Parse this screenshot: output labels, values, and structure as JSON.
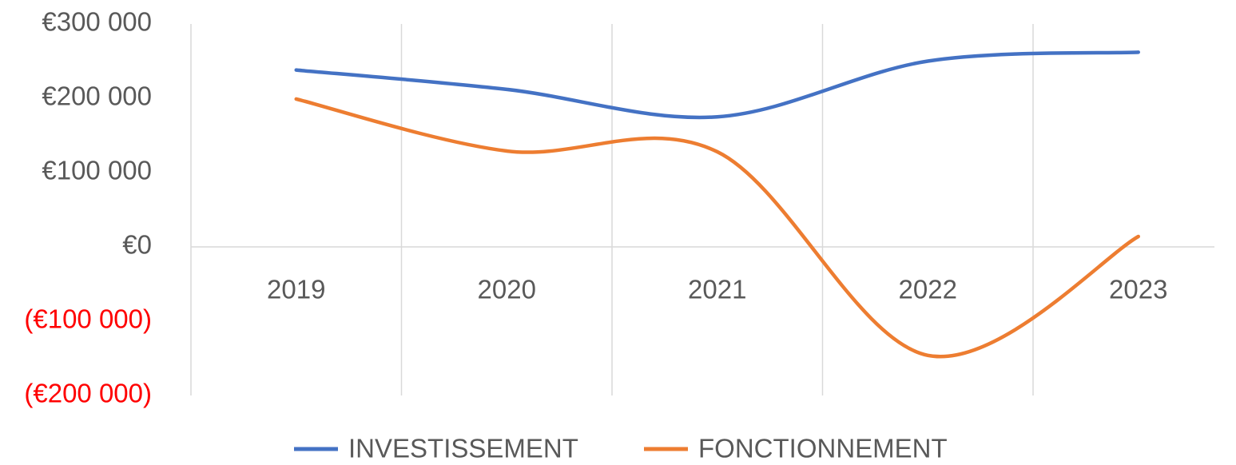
{
  "chart_data": {
    "type": "line",
    "categories": [
      "2019",
      "2020",
      "2021",
      "2022",
      "2023"
    ],
    "series": [
      {
        "name": "INVESTISSEMENT",
        "color": "#4472c4",
        "values": [
          238000,
          212000,
          175000,
          250000,
          262000
        ]
      },
      {
        "name": "FONCTIONNEMENT",
        "color": "#ed7d31",
        "values": [
          199000,
          129000,
          128000,
          -146000,
          14000
        ]
      }
    ],
    "ylim": [
      -200000,
      300000
    ],
    "yticks": [
      {
        "value": -200000,
        "label": "(€200 000)"
      },
      {
        "value": -100000,
        "label": "(€100 000)"
      },
      {
        "value": 0,
        "label": "€0"
      },
      {
        "value": 100000,
        "label": "€100 000"
      },
      {
        "value": 200000,
        "label": "€200 000"
      },
      {
        "value": 300000,
        "label": "€300 000"
      }
    ],
    "negative_label_color": "#ff0000",
    "smooth": true,
    "grid": true,
    "legend": "bottom"
  }
}
